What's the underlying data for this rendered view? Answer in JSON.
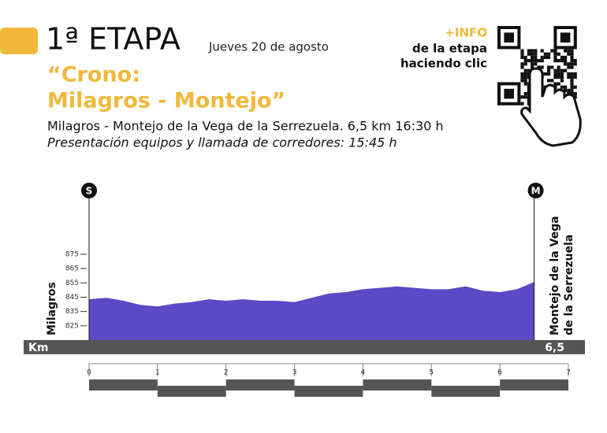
{
  "header": {
    "stage": "1ª ETAPA",
    "date": "Jueves 20 de agosto",
    "title_line1": "“Crono:",
    "title_line2": "Milagros - Montejo”",
    "route": "Milagros - Montejo de la Vega de la Serrezuela. 6,5 km 16:30 h",
    "presentation": "Presentación equipos y llamada de corredores: 15:45 h",
    "info_1": "+INFO",
    "info_2": "de la etapa",
    "info_3": "haciendo clic"
  },
  "chart_data": {
    "type": "area",
    "start_marker": "S",
    "finish_marker": "M",
    "start_label": "Milagros",
    "finish_label_1": "Montejo de la Vega",
    "finish_label_2": "de la Serrezuela",
    "x_axis_label": "Km",
    "end_label": "6,5",
    "x": [
      0,
      0.25,
      0.5,
      0.75,
      1,
      1.25,
      1.5,
      1.75,
      2,
      2.25,
      2.5,
      2.75,
      3,
      3.25,
      3.5,
      3.75,
      4,
      4.25,
      4.5,
      4.75,
      5,
      5.25,
      5.5,
      5.75,
      6,
      6.25,
      6.5
    ],
    "series": [
      {
        "color": "#5b49c6",
        "values": [
          843,
          844,
          842,
          839,
          838,
          840,
          841,
          843,
          842,
          843,
          842,
          842,
          841,
          844,
          847,
          848,
          850,
          851,
          852,
          851,
          850,
          850,
          852,
          849,
          848,
          850,
          855
        ]
      }
    ],
    "xlim": [
      0,
      7
    ],
    "xticks": [
      0,
      1,
      2,
      3,
      4,
      5,
      6,
      7
    ],
    "ylim": [
      815,
      875
    ],
    "yticks": [
      825,
      835,
      845,
      855,
      865,
      875
    ]
  }
}
